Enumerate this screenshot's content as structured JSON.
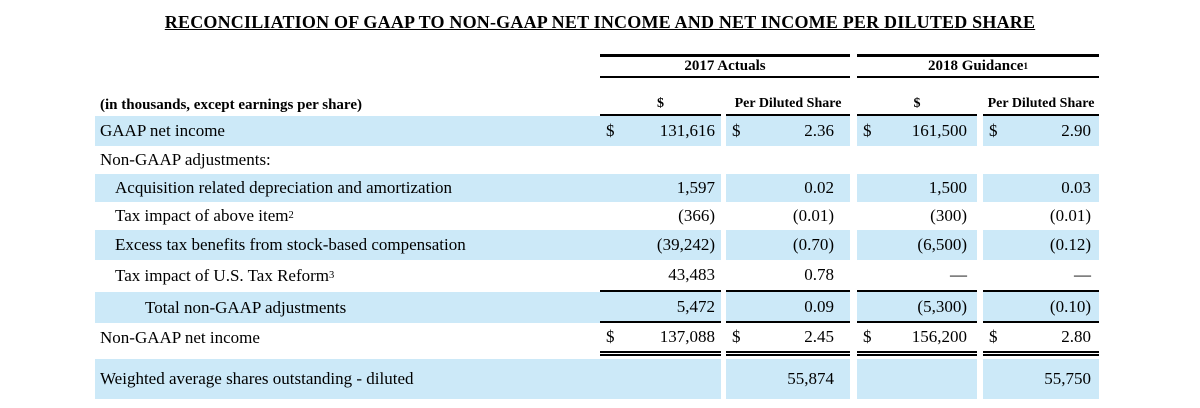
{
  "title": "RECONCILIATION OF GAAP TO NON-GAAP NET INCOME AND NET INCOME PER DILUTED SHARE",
  "colors": {
    "row_highlight": "#cce9f8",
    "text": "#000000",
    "rule": "#000000"
  },
  "table": {
    "unit_note": "(in thousands, except earnings per share)",
    "column_groups": [
      {
        "label": "2017 Actuals",
        "sup": ""
      },
      {
        "label": "2018 Guidance",
        "sup": "1"
      }
    ],
    "sub_headers": [
      "$",
      "Per Diluted Share",
      "$",
      "Per Diluted Share"
    ],
    "rows": [
      {
        "label": "GAAP net income",
        "d1": "$",
        "v1": "131,616",
        "d2": "$",
        "v2": "2.36",
        "d3": "$",
        "v3": "161,500",
        "d4": "$",
        "v4": "2.90"
      },
      {
        "label": "Non-GAAP adjustments:"
      },
      {
        "label": "Acquisition related depreciation and amortization",
        "v1": "1,597",
        "v2": "0.02",
        "v3": "1,500",
        "v4": "0.03"
      },
      {
        "label": "Tax impact of above item",
        "sup": "2",
        "v1": "(366)",
        "v2": "(0.01)",
        "v3": "(300)",
        "v4": "(0.01)"
      },
      {
        "label": "Excess tax benefits from stock-based compensation",
        "v1": "(39,242)",
        "v2": "(0.70)",
        "v3": "(6,500)",
        "v4": "(0.12)"
      },
      {
        "label": "Tax impact of U.S. Tax Reform",
        "sup": "3",
        "v1": "43,483",
        "v2": "0.78",
        "v3": "—",
        "v4": "—"
      },
      {
        "label": "Total non-GAAP adjustments",
        "v1": "5,472",
        "v2": "0.09",
        "v3": "(5,300)",
        "v4": "(0.10)"
      },
      {
        "label": "Non-GAAP net income",
        "d1": "$",
        "v1": "137,088",
        "d2": "$",
        "v2": "2.45",
        "d3": "$",
        "v3": "156,200",
        "d4": "$",
        "v4": "2.80"
      },
      {
        "label": "Weighted average shares outstanding - diluted",
        "v2": "55,874",
        "v4": "55,750"
      }
    ]
  }
}
